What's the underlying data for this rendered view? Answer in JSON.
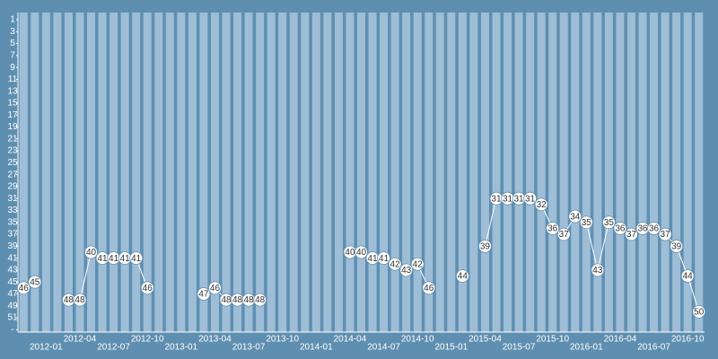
{
  "chart_data": {
    "type": "line",
    "categories": [
      null,
      null,
      "2012-01",
      null,
      null,
      "2012-04",
      null,
      null,
      "2012-07",
      null,
      null,
      "2012-10",
      null,
      null,
      "2013-01",
      null,
      null,
      "2013-04",
      null,
      null,
      "2013-07",
      null,
      null,
      "2013-10",
      null,
      null,
      "2014-01",
      null,
      null,
      "2014-04",
      null,
      null,
      "2014-07",
      null,
      null,
      "2014-10",
      null,
      null,
      "2015-01",
      null,
      null,
      "2015-04",
      null,
      null,
      "2015-07",
      null,
      null,
      "2015-10",
      null,
      null,
      "2016-01",
      null,
      null,
      "2016-04",
      null,
      null,
      "2016-07",
      null,
      null,
      "2016-10",
      null
    ],
    "values": [
      46,
      45,
      null,
      null,
      48,
      48,
      40,
      41,
      41,
      41,
      41,
      46,
      null,
      null,
      null,
      null,
      47,
      46,
      48,
      48,
      48,
      48,
      null,
      null,
      null,
      null,
      null,
      null,
      null,
      40,
      40,
      41,
      41,
      42,
      43,
      42,
      46,
      null,
      null,
      44,
      null,
      39,
      31,
      31,
      31,
      31,
      32,
      36,
      37,
      34,
      35,
      43,
      35,
      36,
      37,
      36,
      36,
      37,
      39,
      44,
      50
    ],
    "color": "#ffffff",
    "ylim": [
      1,
      53
    ],
    "yticks": [
      1,
      3,
      5,
      7,
      9,
      11,
      13,
      15,
      17,
      19,
      21,
      23,
      25,
      27,
      29,
      31,
      33,
      35,
      37,
      39,
      41,
      43,
      45,
      47,
      49,
      51,
      {
        "value": 53,
        "label": "-"
      }
    ],
    "y_inverted": true
  }
}
